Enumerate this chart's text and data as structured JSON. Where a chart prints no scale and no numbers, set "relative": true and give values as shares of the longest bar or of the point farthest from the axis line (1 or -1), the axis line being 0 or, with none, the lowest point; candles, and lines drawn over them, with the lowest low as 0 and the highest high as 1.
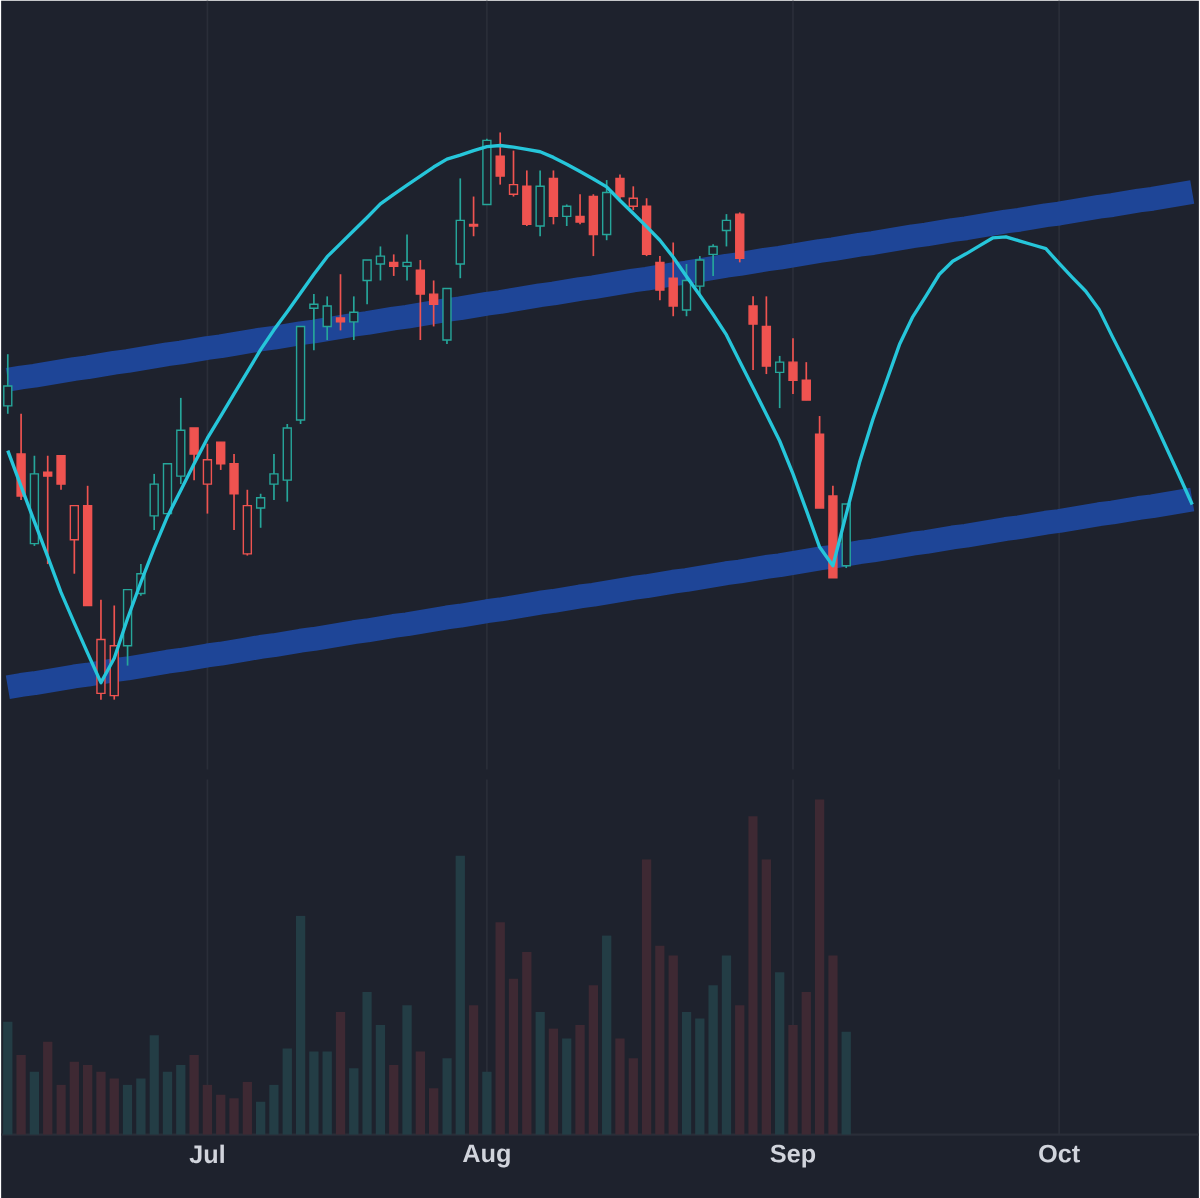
{
  "chart_data": [
    {
      "type": "candlestick",
      "relative": true,
      "tick_labels": false,
      "grid": "x",
      "categories": [
        null,
        null,
        null,
        null,
        null,
        null,
        null,
        null,
        null,
        null,
        null,
        null,
        null,
        null,
        null,
        null,
        null,
        null,
        null,
        null,
        null,
        null,
        null,
        null,
        null,
        null,
        null,
        null,
        null,
        null,
        null,
        null,
        null,
        null,
        null,
        null,
        null,
        null,
        null,
        null,
        null,
        null,
        null,
        null,
        null,
        null,
        null,
        null,
        null,
        null,
        null,
        null,
        null,
        null,
        null,
        null,
        null,
        null,
        null,
        null,
        null,
        null,
        null,
        null,
        null,
        null,
        null,
        null,
        null,
        null,
        null,
        null,
        null,
        null,
        null,
        null,
        null,
        null,
        null,
        null,
        null,
        null,
        null,
        null,
        null,
        null,
        null,
        null,
        null,
        null
      ],
      "ohlc": [
        [
          0.518,
          0.609,
          0.504,
          0.553
        ],
        [
          0.433,
          0.504,
          0.352,
          0.359
        ],
        [
          0.275,
          0.43,
          0.271,
          0.398
        ],
        [
          0.401,
          0.43,
          0.239,
          0.394
        ],
        [
          0.43,
          0.43,
          0.37,
          0.38
        ],
        [
          0.282,
          0.342,
          0.222,
          0.342
        ],
        [
          0.342,
          0.377,
          0.166,
          0.166
        ],
        [
          0.011,
          0.176,
          0,
          0.106
        ],
        [
          0.007,
          0.166,
          0,
          0.095
        ],
        [
          0.095,
          0.194,
          0.06,
          0.194
        ],
        [
          0.187,
          0.239,
          0.183,
          0.222
        ],
        [
          0.324,
          0.398,
          0.299,
          0.38
        ],
        [
          0.328,
          0.416,
          0.328,
          0.416
        ],
        [
          0.394,
          0.532,
          0.38,
          0.475
        ],
        [
          0.479,
          0.479,
          0.387,
          0.433
        ],
        [
          0.38,
          0.451,
          0.328,
          0.423
        ],
        [
          0.454,
          0.454,
          0.405,
          0.416
        ],
        [
          0.416,
          0.433,
          0.299,
          0.363
        ],
        [
          0.257,
          0.37,
          0.254,
          0.342
        ],
        [
          0.338,
          0.363,
          0.303,
          0.356
        ],
        [
          0.38,
          0.433,
          0.352,
          0.398
        ],
        [
          0.387,
          0.486,
          0.349,
          0.479
        ],
        [
          0.493,
          0.658,
          0.486,
          0.658
        ],
        [
          0.69,
          0.715,
          0.616,
          0.697
        ],
        [
          0.658,
          0.711,
          0.634,
          0.694
        ],
        [
          0.673,
          0.75,
          0.651,
          0.666
        ],
        [
          0.666,
          0.711,
          0.634,
          0.683
        ],
        [
          0.739,
          0.775,
          0.697,
          0.775
        ],
        [
          0.768,
          0.799,
          0.739,
          0.782
        ],
        [
          0.771,
          0.785,
          0.747,
          0.764
        ],
        [
          0.764,
          0.82,
          0.739,
          0.771
        ],
        [
          0.757,
          0.775,
          0.634,
          0.715
        ],
        [
          0.715,
          0.739,
          0.658,
          0.697
        ],
        [
          0.634,
          0.725,
          0.627,
          0.725
        ],
        [
          0.768,
          0.919,
          0.743,
          0.845
        ],
        [
          0.838,
          0.887,
          0.817,
          0.835
        ],
        [
          0.873,
          0.989,
          0.873,
          0.986
        ],
        [
          0.958,
          1,
          0.908,
          0.923
        ],
        [
          0.891,
          0.968,
          0.887,
          0.908
        ],
        [
          0.905,
          0.933,
          0.835,
          0.838
        ],
        [
          0.835,
          0.933,
          0.817,
          0.905
        ],
        [
          0.919,
          0.933,
          0.838,
          0.852
        ],
        [
          0.852,
          0.873,
          0.835,
          0.87
        ],
        [
          0.852,
          0.891,
          0.838,
          0.842
        ],
        [
          0.887,
          0.891,
          0.782,
          0.82
        ],
        [
          0.82,
          0.916,
          0.81,
          0.894
        ],
        [
          0.919,
          0.926,
          0.88,
          0.887
        ],
        [
          0.87,
          0.905,
          0.863,
          0.884
        ],
        [
          0.87,
          0.884,
          0.782,
          0.785
        ],
        [
          0.771,
          0.782,
          0.704,
          0.722
        ],
        [
          0.743,
          0.806,
          0.676,
          0.694
        ],
        [
          0.687,
          0.768,
          0.676,
          0.739
        ],
        [
          0.729,
          0.782,
          0.715,
          0.775
        ],
        [
          0.785,
          0.803,
          0.747,
          0.799
        ],
        [
          0.827,
          0.856,
          0.799,
          0.845
        ],
        [
          0.856,
          0.859,
          0.771,
          0.778
        ],
        [
          0.694,
          0.711,
          0.581,
          0.662
        ],
        [
          0.658,
          0.711,
          0.574,
          0.588
        ],
        [
          0.577,
          0.606,
          0.514,
          0.595
        ],
        [
          0.595,
          0.637,
          0.539,
          0.563
        ],
        [
          0.563,
          0.595,
          0.528,
          0.528
        ],
        [
          0.468,
          0.5,
          0.338,
          0.338
        ],
        [
          0.359,
          0.377,
          0.215,
          0.215
        ],
        [
          0.236,
          0.345,
          0.232,
          0.345
        ],
        null,
        null,
        null,
        null,
        null,
        null,
        null,
        null,
        null,
        null,
        null,
        null,
        null,
        null,
        null,
        null,
        null,
        null,
        null,
        null,
        null,
        null,
        null,
        null,
        null,
        null
      ],
      "colors": [
        "#26a69a",
        "#ef5350",
        "#26a69a",
        "#ef5350",
        "#ef5350",
        "#ef5350",
        "#ef5350",
        "#ef5350",
        "#ef5350",
        "#26a69a",
        "#26a69a",
        "#26a69a",
        "#26a69a",
        "#26a69a",
        "#ef5350",
        "#ef5350",
        "#ef5350",
        "#ef5350",
        "#ef5350",
        "#26a69a",
        "#26a69a",
        "#26a69a",
        "#26a69a",
        "#26a69a",
        "#26a69a",
        "#ef5350",
        "#26a69a",
        "#26a69a",
        "#26a69a",
        "#ef5350",
        "#26a69a",
        "#ef5350",
        "#ef5350",
        "#26a69a",
        "#26a69a",
        "#ef5350",
        "#26a69a",
        "#ef5350",
        "#ef5350",
        "#ef5350",
        "#26a69a",
        "#ef5350",
        "#26a69a",
        "#ef5350",
        "#ef5350",
        "#26a69a",
        "#ef5350",
        "#ef5350",
        "#ef5350",
        "#ef5350",
        "#ef5350",
        "#26a69a",
        "#26a69a",
        "#26a69a",
        "#26a69a",
        "#ef5350",
        "#ef5350",
        "#ef5350",
        "#26a69a",
        "#ef5350",
        "#ef5350",
        "#ef5350",
        "#ef5350",
        "#26a69a",
        null,
        null,
        null,
        null,
        null,
        null,
        null,
        null,
        null,
        null,
        null,
        null,
        null,
        null,
        null,
        null,
        null,
        null,
        null,
        null,
        null,
        null,
        null,
        null,
        null,
        null
      ],
      "series": [
        {
          "type": "line",
          "color": "#1e4597",
          "values": [
            0.564,
            0.568,
            0.571,
            0.575,
            0.579,
            0.583,
            0.586,
            0.59,
            0.594,
            0.597,
            0.601,
            0.605,
            0.609,
            0.612,
            0.616,
            0.62,
            0.623,
            0.627,
            0.631,
            0.635,
            0.638,
            0.642,
            0.646,
            0.649,
            0.653,
            0.657,
            0.661,
            0.664,
            0.668,
            0.672,
            0.675,
            0.679,
            0.683,
            0.687,
            0.69,
            0.694,
            0.698,
            0.701,
            0.705,
            0.709,
            0.713,
            0.716,
            0.72,
            0.724,
            0.727,
            0.731,
            0.735,
            0.739,
            0.742,
            0.746,
            0.75,
            0.753,
            0.757,
            0.761,
            0.765,
            0.768,
            0.772,
            0.776,
            0.779,
            0.783,
            0.787,
            0.791,
            0.794,
            0.798,
            0.802,
            0.805,
            0.809,
            0.813,
            0.817,
            0.82,
            0.824,
            0.828,
            0.831,
            0.835,
            0.839,
            0.843,
            0.846,
            0.85,
            0.854,
            0.857,
            0.861,
            0.865,
            0.869,
            0.872,
            0.876,
            0.88,
            0.883,
            0.887,
            0.891,
            0.895
          ]
        },
        {
          "type": "line",
          "color": "#1e4597",
          "values": [
            0.022,
            0.026,
            0.029,
            0.033,
            0.037,
            0.041,
            0.044,
            0.048,
            0.052,
            0.055,
            0.059,
            0.063,
            0.067,
            0.07,
            0.074,
            0.078,
            0.081,
            0.085,
            0.089,
            0.093,
            0.096,
            0.1,
            0.104,
            0.107,
            0.111,
            0.115,
            0.119,
            0.122,
            0.126,
            0.13,
            0.133,
            0.137,
            0.141,
            0.145,
            0.148,
            0.152,
            0.156,
            0.159,
            0.163,
            0.167,
            0.171,
            0.174,
            0.178,
            0.182,
            0.185,
            0.189,
            0.193,
            0.197,
            0.2,
            0.204,
            0.208,
            0.211,
            0.215,
            0.219,
            0.223,
            0.226,
            0.23,
            0.234,
            0.237,
            0.241,
            0.245,
            0.249,
            0.252,
            0.256,
            0.26,
            0.263,
            0.267,
            0.271,
            0.275,
            0.278,
            0.282,
            0.286,
            0.289,
            0.293,
            0.297,
            0.301,
            0.304,
            0.308,
            0.312,
            0.315,
            0.319,
            0.323,
            0.327,
            0.33,
            0.334,
            0.338,
            0.341,
            0.345,
            0.349,
            0.353
          ]
        },
        {
          "type": "line",
          "color": "#26c6da",
          "values": [
            0.439,
            0.376,
            0.314,
            0.252,
            0.189,
            0.135,
            0.082,
            0.03,
            0.073,
            0.143,
            0.207,
            0.267,
            0.323,
            0.369,
            0.416,
            0.461,
            0.5,
            0.539,
            0.578,
            0.617,
            0.652,
            0.684,
            0.717,
            0.75,
            0.781,
            0.804,
            0.827,
            0.85,
            0.874,
            0.891,
            0.907,
            0.923,
            0.939,
            0.953,
            0.96,
            0.968,
            0.975,
            0.977,
            0.974,
            0.97,
            0.966,
            0.956,
            0.944,
            0.931,
            0.918,
            0.904,
            0.88,
            0.857,
            0.834,
            0.81,
            0.78,
            0.746,
            0.713,
            0.679,
            0.643,
            0.596,
            0.55,
            0.503,
            0.456,
            0.398,
            0.334,
            0.269,
            0.236,
            0.327,
            0.418,
            0.494,
            0.56,
            0.626,
            0.675,
            0.712,
            0.75,
            0.773,
            0.786,
            0.8,
            0.814,
            0.816,
            0.809,
            0.802,
            0.795,
            0.769,
            0.744,
            0.72,
            0.688,
            0.64,
            0.594,
            0.547,
            0.498,
            0.447,
            0.396,
            0.344
          ]
        }
      ]
    },
    {
      "type": "bar",
      "relative": true,
      "tick_labels": "x",
      "grid": "x",
      "categories": [
        null,
        null,
        null,
        null,
        null,
        null,
        null,
        null,
        null,
        null,
        null,
        null,
        null,
        null,
        null,
        "Jul",
        null,
        null,
        null,
        null,
        null,
        null,
        null,
        null,
        null,
        null,
        null,
        null,
        null,
        null,
        null,
        null,
        null,
        null,
        null,
        null,
        "Aug",
        null,
        null,
        null,
        null,
        null,
        null,
        null,
        null,
        null,
        null,
        null,
        null,
        null,
        null,
        null,
        null,
        null,
        null,
        null,
        null,
        null,
        null,
        "Sep",
        null,
        null,
        null,
        null,
        null,
        null,
        null,
        null,
        null,
        null,
        null,
        null,
        null,
        null,
        null,
        null,
        null,
        null,
        null,
        "Oct",
        null,
        null,
        null,
        null,
        null,
        null,
        null,
        null,
        null,
        null
      ],
      "values": [
        0.337,
        0.238,
        0.188,
        0.277,
        0.149,
        0.218,
        0.208,
        0.188,
        0.168,
        0.149,
        0.168,
        0.297,
        0.188,
        0.208,
        0.238,
        0.149,
        0.119,
        0.109,
        0.158,
        0.099,
        0.149,
        0.257,
        0.653,
        0.248,
        0.248,
        0.366,
        0.198,
        0.426,
        0.327,
        0.208,
        0.386,
        0.248,
        0.139,
        0.228,
        0.832,
        0.386,
        0.188,
        0.634,
        0.465,
        0.545,
        0.366,
        0.317,
        0.287,
        0.327,
        0.446,
        0.594,
        0.287,
        0.228,
        0.822,
        0.564,
        0.535,
        0.366,
        0.347,
        0.446,
        0.535,
        0.386,
        0.95,
        0.822,
        0.485,
        0.327,
        0.426,
        1,
        0.535,
        0.307,
        null,
        null,
        null,
        null,
        null,
        null,
        null,
        null,
        null,
        null,
        null,
        null,
        null,
        null,
        null,
        null,
        null,
        null,
        null,
        null,
        null,
        null,
        null,
        null,
        null,
        null
      ],
      "colors": [
        "#233d45",
        "#3e2933",
        "#233d45",
        "#3e2933",
        "#3e2933",
        "#3e2933",
        "#3e2933",
        "#3e2933",
        "#3e2933",
        "#233d45",
        "#233d45",
        "#233d45",
        "#233d45",
        "#233d45",
        "#3e2933",
        "#3e2933",
        "#3e2933",
        "#3e2933",
        "#3e2933",
        "#233d45",
        "#233d45",
        "#233d45",
        "#233d45",
        "#233d45",
        "#233d45",
        "#3e2933",
        "#233d45",
        "#233d45",
        "#233d45",
        "#3e2933",
        "#233d45",
        "#3e2933",
        "#3e2933",
        "#233d45",
        "#233d45",
        "#3e2933",
        "#233d45",
        "#3e2933",
        "#3e2933",
        "#3e2933",
        "#233d45",
        "#3e2933",
        "#233d45",
        "#3e2933",
        "#3e2933",
        "#233d45",
        "#3e2933",
        "#3e2933",
        "#3e2933",
        "#3e2933",
        "#3e2933",
        "#233d45",
        "#233d45",
        "#233d45",
        "#233d45",
        "#3e2933",
        "#3e2933",
        "#3e2933",
        "#233d45",
        "#3e2933",
        "#3e2933",
        "#3e2933",
        "#3e2933",
        "#233d45",
        null,
        null,
        null,
        null,
        null,
        null,
        null,
        null,
        null,
        null,
        null,
        null,
        null,
        null,
        null,
        null,
        null,
        null,
        null,
        null,
        null,
        null,
        null,
        null,
        null,
        null
      ]
    }
  ]
}
